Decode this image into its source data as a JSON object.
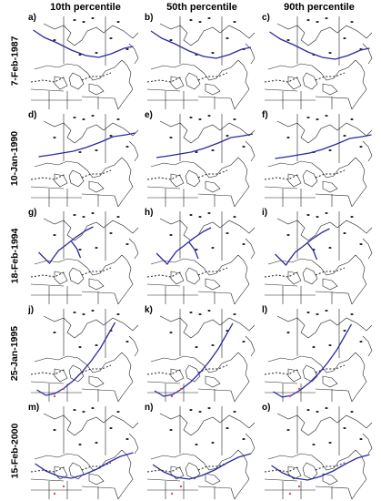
{
  "columns": [
    "10th percentile",
    "50th percentile",
    "90th percentile"
  ],
  "rows": [
    {
      "date": "7-Feb-1987",
      "letters": [
        "a)",
        "b)",
        "c)"
      ]
    },
    {
      "date": "10-Jan-1990",
      "letters": [
        "d)",
        "e)",
        "f)"
      ]
    },
    {
      "date": "18-Feb-1994",
      "letters": [
        "g)",
        "h)",
        "i)"
      ]
    },
    {
      "date": "25-Jan-1995",
      "letters": [
        "j)",
        "k)",
        "l)"
      ]
    },
    {
      "date": "15-Feb-2000",
      "letters": [
        "m)",
        "n)",
        "o)"
      ]
    }
  ],
  "colors": {
    "map_lines": "#222222",
    "track": "#2a2aa0",
    "marker": "#e05050"
  }
}
